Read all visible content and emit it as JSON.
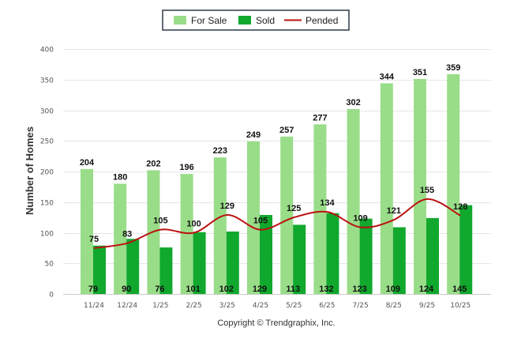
{
  "chart_data": {
    "type": "bar",
    "categories": [
      "11/24",
      "12/24",
      "1/25",
      "2/25",
      "3/25",
      "4/25",
      "5/25",
      "6/25",
      "7/25",
      "8/25",
      "9/25",
      "10/25"
    ],
    "series": [
      {
        "name": "For Sale",
        "kind": "bar",
        "color": "#99dd88",
        "values": [
          204,
          180,
          202,
          196,
          223,
          249,
          257,
          277,
          302,
          344,
          351,
          359
        ]
      },
      {
        "name": "Sold",
        "kind": "bar",
        "color": "#11a82e",
        "values": [
          79,
          90,
          76,
          101,
          102,
          129,
          113,
          132,
          123,
          109,
          124,
          145
        ]
      },
      {
        "name": "Pended",
        "kind": "line",
        "color": "#bb1111",
        "values": [
          75,
          83,
          105,
          100,
          129,
          105,
          125,
          134,
          109,
          121,
          155,
          128
        ]
      }
    ],
    "ylabel": "Number of Homes",
    "xlabel": "",
    "ylim": [
      0,
      400
    ],
    "yticks": [
      0,
      50,
      100,
      150,
      200,
      250,
      300,
      350,
      400
    ],
    "legend_position": "top-center",
    "grid": true
  },
  "legend": {
    "for_sale": "For Sale",
    "sold": "Sold",
    "pended": "Pended"
  },
  "footer": {
    "copyright": "Copyright © Trendgraphix, Inc."
  }
}
